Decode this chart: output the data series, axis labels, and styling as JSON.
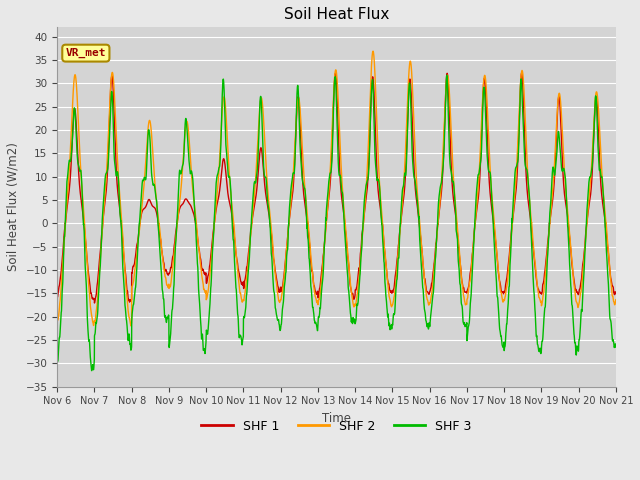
{
  "title": "Soil Heat Flux",
  "xlabel": "Time",
  "ylabel": "Soil Heat Flux (W/m2)",
  "ylim": [
    -35,
    42
  ],
  "yticks": [
    -35,
    -30,
    -25,
    -20,
    -15,
    -10,
    -5,
    0,
    5,
    10,
    15,
    20,
    25,
    30,
    35,
    40
  ],
  "background_color": "#e8e8e8",
  "plot_bg_color": "#d4d4d4",
  "grid_color": "#c0c0c0",
  "legend_labels": [
    "SHF 1",
    "SHF 2",
    "SHF 3"
  ],
  "legend_colors": [
    "#cc0000",
    "#ff9900",
    "#00bb00"
  ],
  "annotation_text": "VR_met",
  "annotation_color": "#990000",
  "annotation_bg": "#ffff99",
  "annotation_border": "#aa8800",
  "start_day": 6,
  "end_day": 21,
  "n_days": 15,
  "points_per_day": 288,
  "line_width": 1.0,
  "shf1_peaks": [
    25,
    32,
    5,
    5,
    14,
    16,
    27,
    32,
    31,
    31,
    32,
    31,
    32,
    27,
    27
  ],
  "shf2_peaks": [
    32,
    32,
    22,
    22,
    27,
    27,
    27,
    33,
    37,
    35,
    32,
    32,
    33,
    28,
    28
  ],
  "shf3_peaks": [
    25,
    28,
    20,
    23,
    30,
    27,
    30,
    32,
    31,
    31,
    32,
    30,
    30,
    20,
    27
  ],
  "shf1_troughs": [
    -16,
    -17,
    -11,
    -11,
    -13,
    -14,
    -15,
    -16,
    -15,
    -15,
    -15,
    -15,
    -15,
    -15,
    -15
  ],
  "shf2_troughs": [
    -22,
    -22,
    -14,
    -15,
    -17,
    -17,
    -17,
    -18,
    -18,
    -18,
    -18,
    -17,
    -17,
    -18,
    -18
  ],
  "shf3_troughs": [
    -31,
    -26,
    -21,
    -27,
    -26,
    -22,
    -22,
    -22,
    -22,
    -22,
    -22,
    -26,
    -28,
    -27,
    -26
  ]
}
